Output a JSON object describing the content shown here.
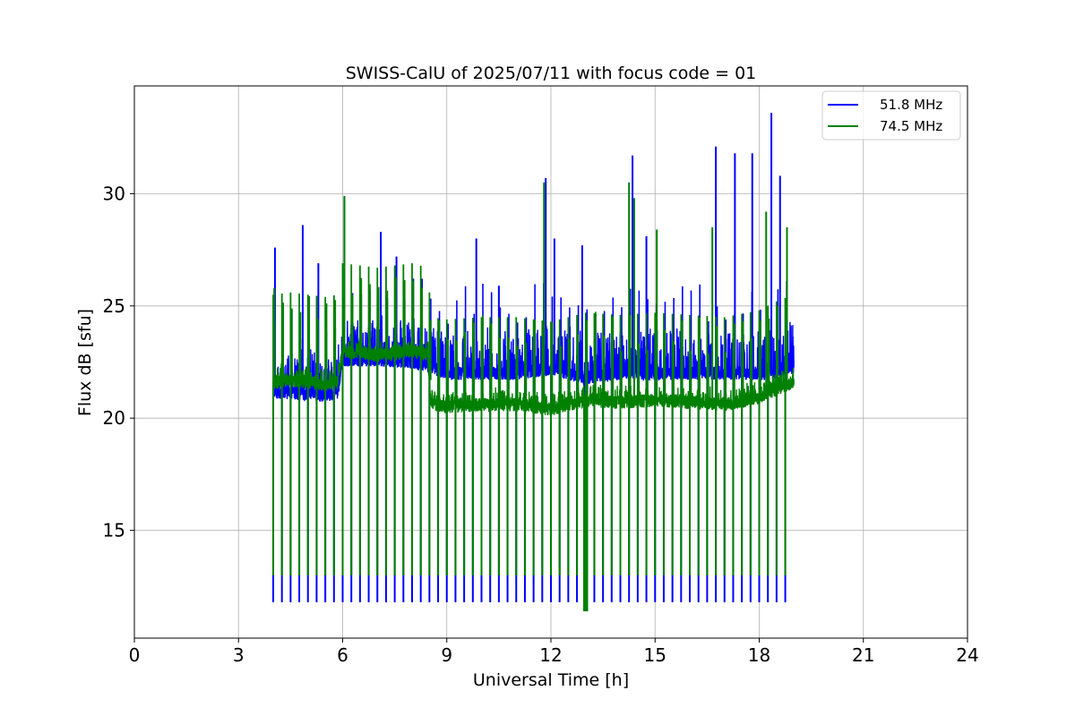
{
  "chart_data": {
    "type": "line",
    "title": "SWISS-CalU of 2025/07/11 with focus code = 01",
    "xlabel": "Universal Time [h]",
    "ylabel": "Flux dB [sfu]",
    "xlim": [
      0,
      24
    ],
    "ylim": [
      10.2,
      34.8
    ],
    "xticks": [
      0,
      3,
      6,
      9,
      12,
      15,
      18,
      21,
      24
    ],
    "xtick_labels": [
      "0",
      "3",
      "6",
      "9",
      "12",
      "15",
      "18",
      "21",
      "24"
    ],
    "yticks": [
      15,
      20,
      25,
      30
    ],
    "ytick_labels": [
      "15",
      "20",
      "25",
      "30"
    ],
    "grid": true,
    "legend_position": "top-right",
    "time_range": [
      4.0,
      19.0
    ],
    "calibration_dips": {
      "start": 4.0,
      "end": 18.77,
      "interval": 0.25,
      "low_51_8": 11.8,
      "low_74_5": 13.0,
      "extra_low_at": 13.0,
      "extra_low": 11.4
    },
    "series": [
      {
        "name": "51.8 MHz",
        "color": "#0000ff",
        "baseline_x": [
          4.0,
          4.5,
          5.0,
          5.5,
          5.85,
          6.0,
          7.0,
          8.0,
          8.5,
          9.0,
          10.0,
          11.0,
          12.0,
          13.0,
          14.0,
          15.0,
          16.0,
          17.0,
          18.0,
          18.5,
          19.0
        ],
        "baseline_y": [
          21.2,
          21.1,
          21.1,
          21.0,
          21.1,
          22.6,
          22.6,
          22.5,
          22.3,
          22.0,
          22.0,
          22.0,
          22.2,
          21.8,
          22.0,
          22.0,
          22.0,
          22.0,
          22.0,
          22.0,
          22.3
        ],
        "noise_amplitude": 1.8,
        "peaks": [
          {
            "t": 4.05,
            "y": 27.6
          },
          {
            "t": 4.85,
            "y": 28.6
          },
          {
            "t": 5.3,
            "y": 26.9
          },
          {
            "t": 6.05,
            "y": 29.8
          },
          {
            "t": 7.1,
            "y": 28.3
          },
          {
            "t": 7.55,
            "y": 27.2
          },
          {
            "t": 9.85,
            "y": 28.0
          },
          {
            "t": 10.5,
            "y": 25.9
          },
          {
            "t": 11.85,
            "y": 30.7
          },
          {
            "t": 12.1,
            "y": 28.0
          },
          {
            "t": 12.9,
            "y": 27.7
          },
          {
            "t": 14.35,
            "y": 31.7
          },
          {
            "t": 14.75,
            "y": 28.1
          },
          {
            "t": 16.75,
            "y": 32.1
          },
          {
            "t": 17.3,
            "y": 31.8
          },
          {
            "t": 17.8,
            "y": 31.8
          },
          {
            "t": 18.35,
            "y": 33.6
          },
          {
            "t": 18.6,
            "y": 30.8
          }
        ]
      },
      {
        "name": "74.5 MHz",
        "color": "#008000",
        "baseline_x": [
          4.0,
          4.5,
          5.0,
          5.5,
          5.85,
          6.0,
          7.0,
          8.0,
          8.45,
          8.55,
          9.0,
          10.0,
          11.0,
          12.0,
          13.0,
          14.0,
          15.0,
          16.0,
          17.0,
          18.0,
          18.5,
          19.0
        ],
        "baseline_y": [
          21.6,
          21.7,
          21.6,
          21.5,
          21.6,
          23.0,
          22.8,
          23.0,
          22.8,
          20.6,
          20.5,
          20.6,
          20.6,
          20.4,
          20.8,
          20.7,
          20.8,
          20.7,
          20.6,
          20.9,
          21.3,
          21.6
        ],
        "noise_amplitude": 0.5,
        "peaks": [
          {
            "t": 4.03,
            "y": 25.8
          },
          {
            "t": 6.05,
            "y": 29.9
          },
          {
            "t": 11.8,
            "y": 30.5
          },
          {
            "t": 14.25,
            "y": 30.5
          },
          {
            "t": 14.4,
            "y": 29.8
          },
          {
            "t": 15.05,
            "y": 28.4
          },
          {
            "t": 16.65,
            "y": 28.5
          },
          {
            "t": 18.2,
            "y": 29.2
          },
          {
            "t": 18.8,
            "y": 28.5
          }
        ]
      }
    ]
  }
}
